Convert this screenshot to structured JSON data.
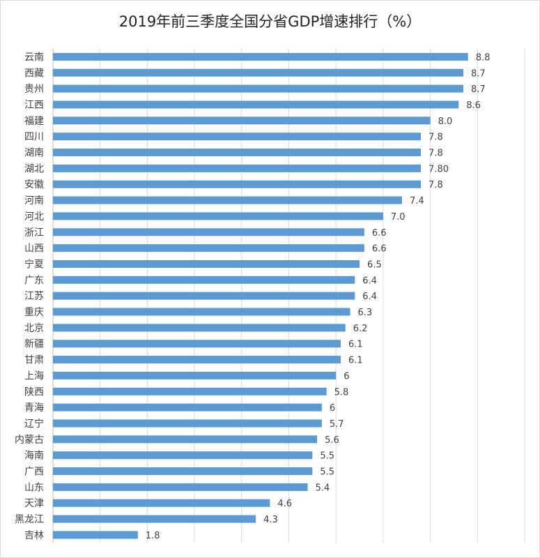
{
  "chart_data": {
    "type": "bar",
    "orientation": "horizontal",
    "title": "2019年前三季度全国分省GDP增速排行（%）",
    "xlabel": "",
    "ylabel": "",
    "xlim": [
      0,
      10
    ],
    "grid": true,
    "bar_color": "#5b9bd5",
    "categories": [
      "云南",
      "西藏",
      "贵州",
      "江西",
      "福建",
      "四川",
      "湖南",
      "湖北",
      "安徽",
      "河南",
      "河北",
      "浙江",
      "山西",
      "宁夏",
      "广东",
      "江苏",
      "重庆",
      "北京",
      "新疆",
      "甘肃",
      "上海",
      "陕西",
      "青海",
      "辽宁",
      "内蒙古",
      "海南",
      "广西",
      "山东",
      "天津",
      "黑龙江",
      "吉林"
    ],
    "values": [
      8.8,
      8.7,
      8.7,
      8.6,
      8.0,
      7.8,
      7.8,
      7.8,
      7.8,
      7.4,
      7.0,
      6.6,
      6.6,
      6.5,
      6.4,
      6.4,
      6.3,
      6.2,
      6.1,
      6.1,
      6.0,
      5.8,
      5.7,
      5.7,
      5.6,
      5.5,
      5.5,
      5.4,
      4.6,
      4.3,
      1.8
    ],
    "labels": [
      "8.8",
      "8.7",
      "8.7",
      "8.6",
      "8.0",
      "7.8",
      "7.8",
      "7.80",
      "7.8",
      "7.4",
      "7.0",
      "6.6",
      "6.6",
      "6.5",
      "6.4",
      "6.4",
      "6.3",
      "6.2",
      "6.1",
      "6.1",
      "6",
      "5.8",
      "6",
      "5.7",
      "5.6",
      "5.5",
      "5.5",
      "5.4",
      "4.6",
      "4.3",
      "1.8"
    ]
  }
}
